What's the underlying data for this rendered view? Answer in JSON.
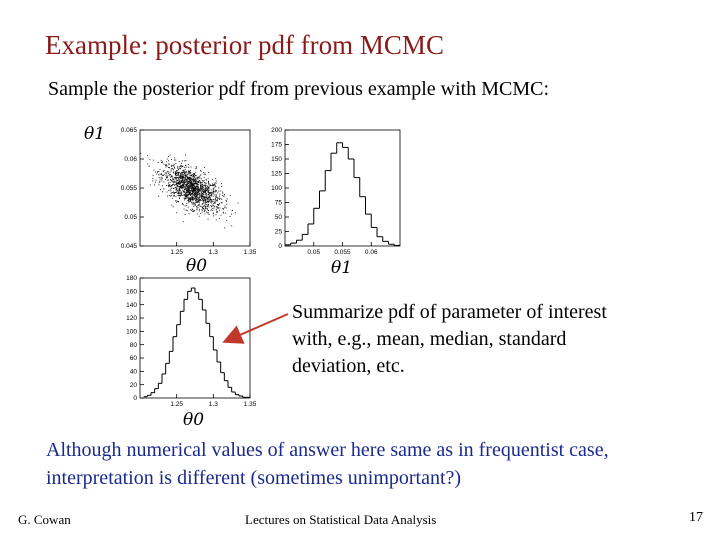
{
  "slide": {
    "title": "Example:  posterior pdf from MCMC",
    "subtitle": "Sample the posterior pdf from previous example with MCMC:",
    "note": "Summarize pdf of parameter of interest with, e.g., mean, median, standard deviation, etc.",
    "bottom_text": "Although numerical values of answer here same as in frequentist case, interpretation is different (sometimes unimportant?)",
    "footer": {
      "author": "G. Cowan",
      "course": "Lectures on Statistical Data Analysis",
      "page": "17"
    },
    "colors": {
      "title": "#8b1a1a",
      "bottom_text": "#1a2a8b",
      "arrow": "#c0392b"
    }
  },
  "chart_data": [
    {
      "type": "scatter",
      "xlabel": "θ0",
      "ylabel": "θ1",
      "xlim": [
        1.2,
        1.35
      ],
      "ylim": [
        0.045,
        0.065
      ],
      "x_ticks": [
        "1.25",
        "1.3",
        "1.35"
      ],
      "y_ticks": [
        "0.065",
        "0.06",
        "0.055",
        "0.05",
        "0.045"
      ],
      "mean": [
        1.27,
        0.055
      ],
      "std": [
        0.02,
        0.002
      ],
      "correlation": -0.6,
      "n_points": 1500
    },
    {
      "type": "histogram",
      "xlabel": "θ1",
      "xlim": [
        0.045,
        0.065
      ],
      "ylim": [
        0,
        200
      ],
      "x_ticks": [
        "0.05",
        "0.055",
        "0.06"
      ],
      "y_ticks": [
        "200",
        "175",
        "150",
        "125",
        "100",
        "75",
        "50",
        "25",
        "0"
      ],
      "x": [
        0.0455,
        0.0465,
        0.0475,
        0.0485,
        0.0495,
        0.0505,
        0.0515,
        0.0525,
        0.0535,
        0.0545,
        0.0555,
        0.0565,
        0.0575,
        0.0585,
        0.0595,
        0.0605,
        0.0615,
        0.0625,
        0.0635,
        0.0645
      ],
      "values": [
        2,
        5,
        10,
        20,
        38,
        65,
        95,
        130,
        160,
        178,
        170,
        150,
        118,
        85,
        55,
        32,
        16,
        8,
        3,
        1
      ]
    },
    {
      "type": "histogram",
      "xlabel": "θ0",
      "xlim": [
        1.2,
        1.35
      ],
      "ylim": [
        0,
        180
      ],
      "x_ticks": [
        "1.25",
        "1.3",
        "1.35"
      ],
      "y_ticks": [
        "180",
        "160",
        "140",
        "120",
        "100",
        "80",
        "60",
        "40",
        "20",
        "0"
      ],
      "x": [
        1.2075,
        1.2125,
        1.2175,
        1.2225,
        1.2275,
        1.2325,
        1.2375,
        1.2425,
        1.2475,
        1.2525,
        1.2575,
        1.2625,
        1.2675,
        1.2725,
        1.2775,
        1.2825,
        1.2875,
        1.2925,
        1.2975,
        1.3025,
        1.3075,
        1.3125,
        1.3175,
        1.3225,
        1.3275,
        1.3325,
        1.3375,
        1.3425,
        1.3475
      ],
      "values": [
        2,
        4,
        8,
        14,
        22,
        36,
        52,
        70,
        92,
        110,
        130,
        148,
        160,
        165,
        158,
        148,
        132,
        112,
        92,
        72,
        54,
        38,
        26,
        16,
        9,
        5,
        3,
        1,
        1
      ]
    }
  ]
}
